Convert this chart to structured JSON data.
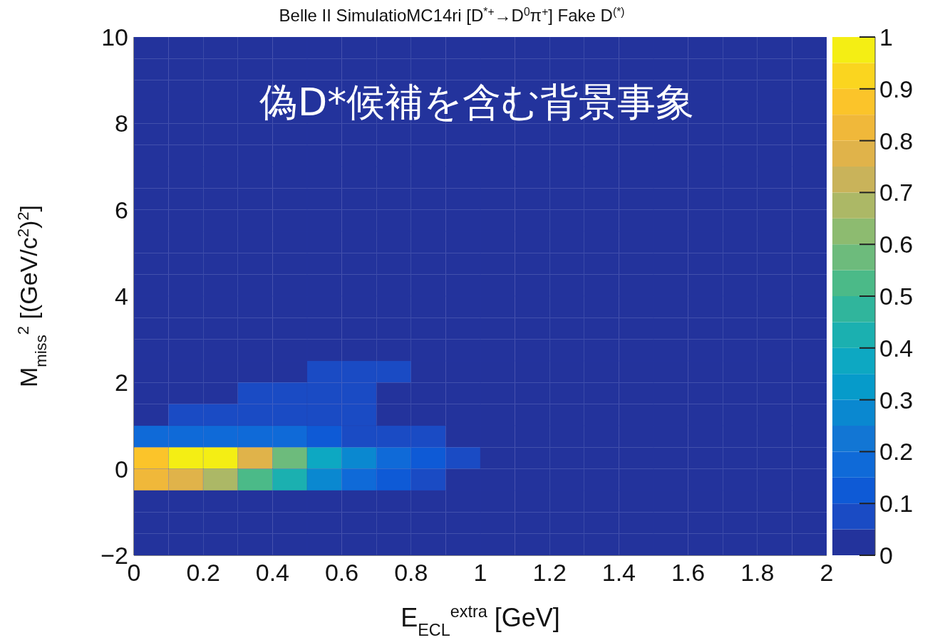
{
  "chart_data": {
    "type": "heatmap",
    "title": "Belle II   SimulatioMC14ri   [D$^{*+}$→D$^{0}$π$^{+}$]   Fake D$^{(*)}$",
    "annotations": [
      "偽D*候補を含む背景事象"
    ],
    "xlabel": "E$_{ECL}$$^{extra}$ [GeV]",
    "ylabel": "M$_{miss}$$^{2}$ [(GeV/c$^{2}$)$^{2}$]",
    "xlim": [
      0,
      2
    ],
    "xticks": [
      0,
      0.2,
      0.4,
      0.6,
      0.8,
      1,
      1.2,
      1.4,
      1.6,
      1.8,
      2
    ],
    "ylim": [
      -2,
      10
    ],
    "yticks": [
      -2,
      0,
      2,
      4,
      6,
      8,
      10
    ],
    "clim": [
      0,
      1
    ],
    "cticks": [
      0,
      0.1,
      0.2,
      0.3,
      0.4,
      0.5,
      0.6,
      0.7,
      0.8,
      0.9,
      1
    ],
    "cells": [
      [
        0,
        0,
        0,
        0,
        0,
        0,
        0,
        0,
        0,
        0,
        0,
        0,
        0,
        0,
        0,
        0,
        0,
        0,
        0,
        0
      ],
      [
        0,
        0,
        0,
        0,
        0,
        0,
        0,
        0,
        0,
        0,
        0,
        0,
        0,
        0,
        0,
        0,
        0,
        0,
        0,
        0
      ],
      [
        0,
        0,
        0,
        0,
        0,
        0,
        0,
        0,
        0,
        0,
        0,
        0,
        0,
        0,
        0,
        0,
        0,
        0,
        0,
        0
      ],
      [
        0,
        0,
        0,
        0,
        0,
        0,
        0,
        0,
        0,
        0,
        0,
        0,
        0,
        0,
        0,
        0,
        0,
        0,
        0,
        0
      ],
      [
        0,
        0,
        0,
        0,
        0,
        0,
        0,
        0,
        0,
        0,
        0,
        0,
        0,
        0,
        0,
        0,
        0,
        0,
        0,
        0
      ],
      [
        0,
        0,
        0,
        0,
        0,
        0,
        0,
        0,
        0,
        0,
        0,
        0,
        0,
        0,
        0,
        0,
        0,
        0,
        0,
        0
      ],
      [
        0,
        0,
        0,
        0,
        0,
        0,
        0,
        0,
        0,
        0,
        0,
        0,
        0,
        0,
        0,
        0,
        0,
        0,
        0,
        0
      ],
      [
        0,
        0,
        0,
        0,
        0,
        0,
        0,
        0,
        0,
        0,
        0,
        0,
        0,
        0,
        0,
        0,
        0,
        0,
        0,
        0
      ],
      [
        0,
        0,
        0,
        0,
        0,
        0,
        0,
        0,
        0,
        0,
        0,
        0,
        0,
        0,
        0,
        0,
        0,
        0,
        0,
        0
      ],
      [
        0,
        0,
        0,
        0,
        0,
        0,
        0,
        0,
        0,
        0,
        0,
        0,
        0,
        0,
        0,
        0,
        0,
        0,
        0,
        0
      ],
      [
        0,
        0,
        0,
        0,
        0,
        0,
        0,
        0,
        0,
        0,
        0,
        0,
        0,
        0,
        0,
        0,
        0,
        0,
        0,
        0
      ],
      [
        0,
        0,
        0,
        0,
        0,
        0,
        0,
        0,
        0,
        0,
        0,
        0,
        0,
        0,
        0,
        0,
        0,
        0,
        0,
        0
      ],
      [
        0,
        0,
        0,
        0,
        0,
        0,
        0,
        0,
        0,
        0,
        0,
        0,
        0,
        0,
        0,
        0,
        0,
        0,
        0,
        0
      ],
      [
        0,
        0,
        0,
        0,
        0,
        0,
        0,
        0,
        0,
        0,
        0,
        0,
        0,
        0,
        0,
        0,
        0,
        0,
        0,
        0
      ],
      [
        0,
        0,
        0,
        0,
        0,
        0,
        0,
        0,
        0,
        0,
        0,
        0,
        0,
        0,
        0,
        0,
        0,
        0,
        0,
        0
      ],
      [
        0,
        0,
        0,
        0,
        0,
        0.08,
        0.08,
        0.08,
        0,
        0,
        0,
        0,
        0,
        0,
        0,
        0,
        0,
        0,
        0,
        0
      ],
      [
        0,
        0,
        0,
        0.08,
        0.08,
        0.08,
        0.08,
        0,
        0,
        0,
        0,
        0,
        0,
        0,
        0,
        0,
        0,
        0,
        0,
        0
      ],
      [
        0,
        0.08,
        0.08,
        0.08,
        0.08,
        0.08,
        0.08,
        0,
        0,
        0,
        0,
        0,
        0,
        0,
        0,
        0,
        0,
        0,
        0,
        0
      ],
      [
        0.17,
        0.17,
        0.18,
        0.18,
        0.18,
        0.13,
        0.08,
        0.08,
        0.08,
        0,
        0,
        0,
        0,
        0,
        0,
        0,
        0,
        0,
        0,
        0
      ],
      [
        0.88,
        1,
        1,
        0.78,
        0.58,
        0.38,
        0.28,
        0.18,
        0.13,
        0.08,
        0,
        0,
        0,
        0,
        0,
        0,
        0,
        0,
        0,
        0
      ],
      [
        0.83,
        0.78,
        0.68,
        0.53,
        0.43,
        0.28,
        0.18,
        0.13,
        0.08,
        0,
        0,
        0,
        0,
        0,
        0,
        0,
        0,
        0,
        0,
        0
      ],
      [
        0,
        0,
        0,
        0,
        0,
        0,
        0,
        0,
        0,
        0,
        0,
        0,
        0,
        0,
        0,
        0,
        0,
        0,
        0,
        0
      ],
      [
        0,
        0,
        0,
        0,
        0,
        0,
        0,
        0,
        0,
        0,
        0,
        0,
        0,
        0,
        0,
        0,
        0,
        0,
        0,
        0
      ],
      [
        0,
        0,
        0,
        0,
        0,
        0,
        0,
        0,
        0,
        0,
        0,
        0,
        0,
        0,
        0,
        0,
        0,
        0,
        0,
        0
      ]
    ]
  }
}
